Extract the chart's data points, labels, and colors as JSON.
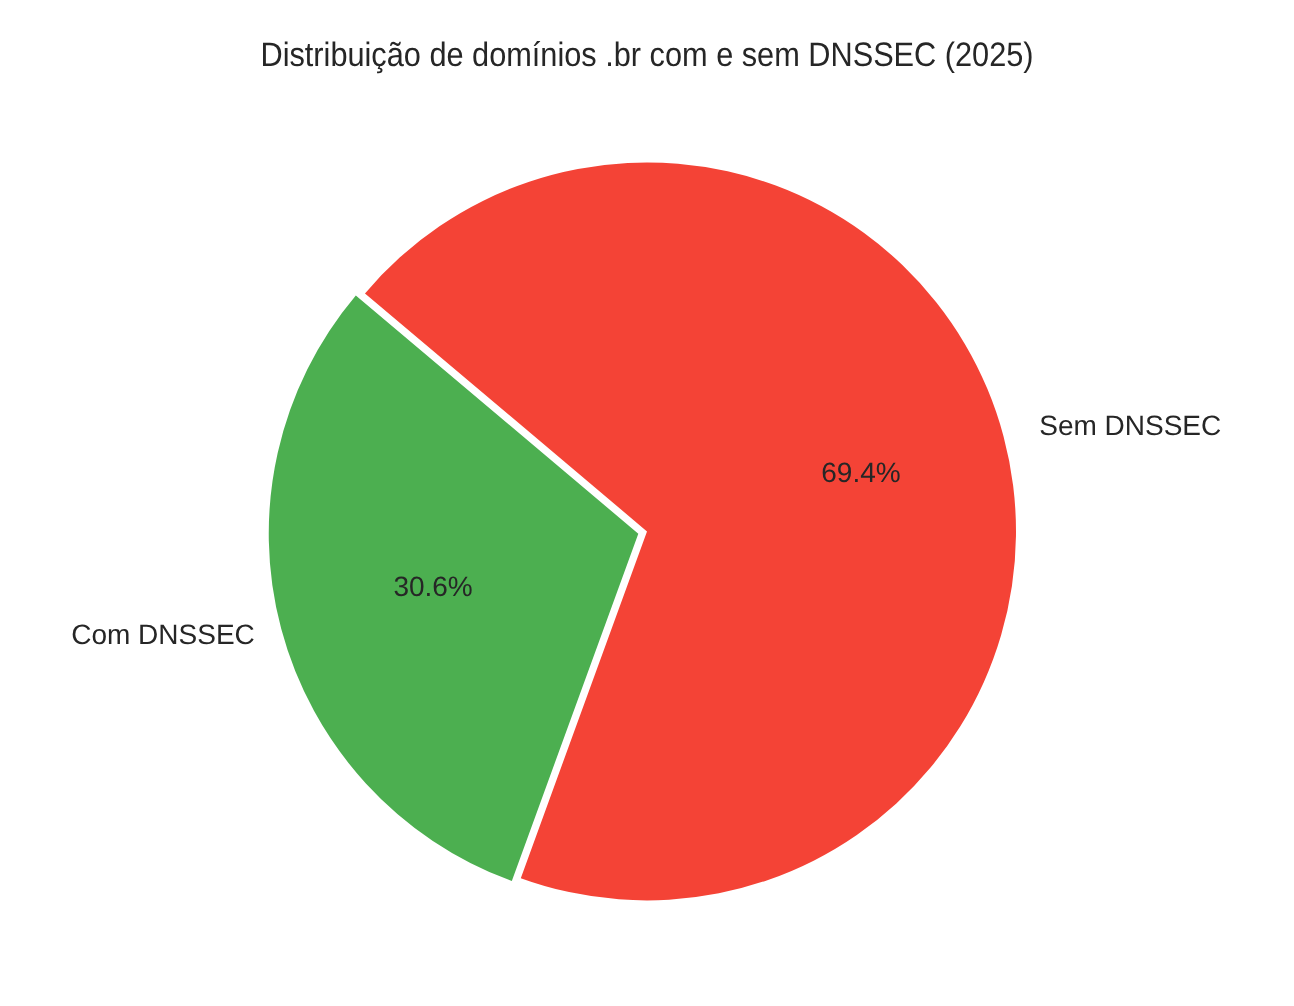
{
  "chart_data": {
    "type": "pie",
    "title": "Distribuição de domínios .br com e sem DNSSEC (2025)",
    "categories": [
      "Com DNSSEC",
      "Sem DNSSEC"
    ],
    "values": [
      30.6,
      69.4
    ],
    "colors": [
      "#4caf50",
      "#f44336"
    ],
    "value_labels": [
      "30.6%",
      "69.4%"
    ],
    "legend": false
  }
}
